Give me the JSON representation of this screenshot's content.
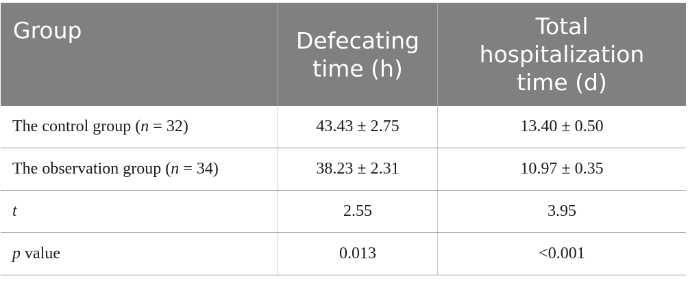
{
  "table": {
    "headers": [
      [
        "Group"
      ],
      [
        "Defecating",
        "time (h)"
      ],
      [
        "Total",
        "hospitalization",
        "time (d)"
      ]
    ],
    "rows": [
      {
        "label": "The control group (",
        "label_italic": "n",
        "label_suffix": " = 32)",
        "defecating": "43.43 ± 2.75",
        "hospitalization": "13.40 ± 0.50"
      },
      {
        "label": "The observation group (",
        "label_italic": "n",
        "label_suffix": " = 34)",
        "defecating": "38.23 ± 2.31",
        "hospitalization": "10.97 ± 0.35"
      },
      {
        "label": "",
        "label_italic": "t",
        "label_suffix": "",
        "defecating": "2.55",
        "hospitalization": "3.95"
      },
      {
        "label": "",
        "label_italic": "p",
        "label_suffix": " value",
        "defecating": "0.013",
        "hospitalization": "<0.001"
      }
    ]
  }
}
